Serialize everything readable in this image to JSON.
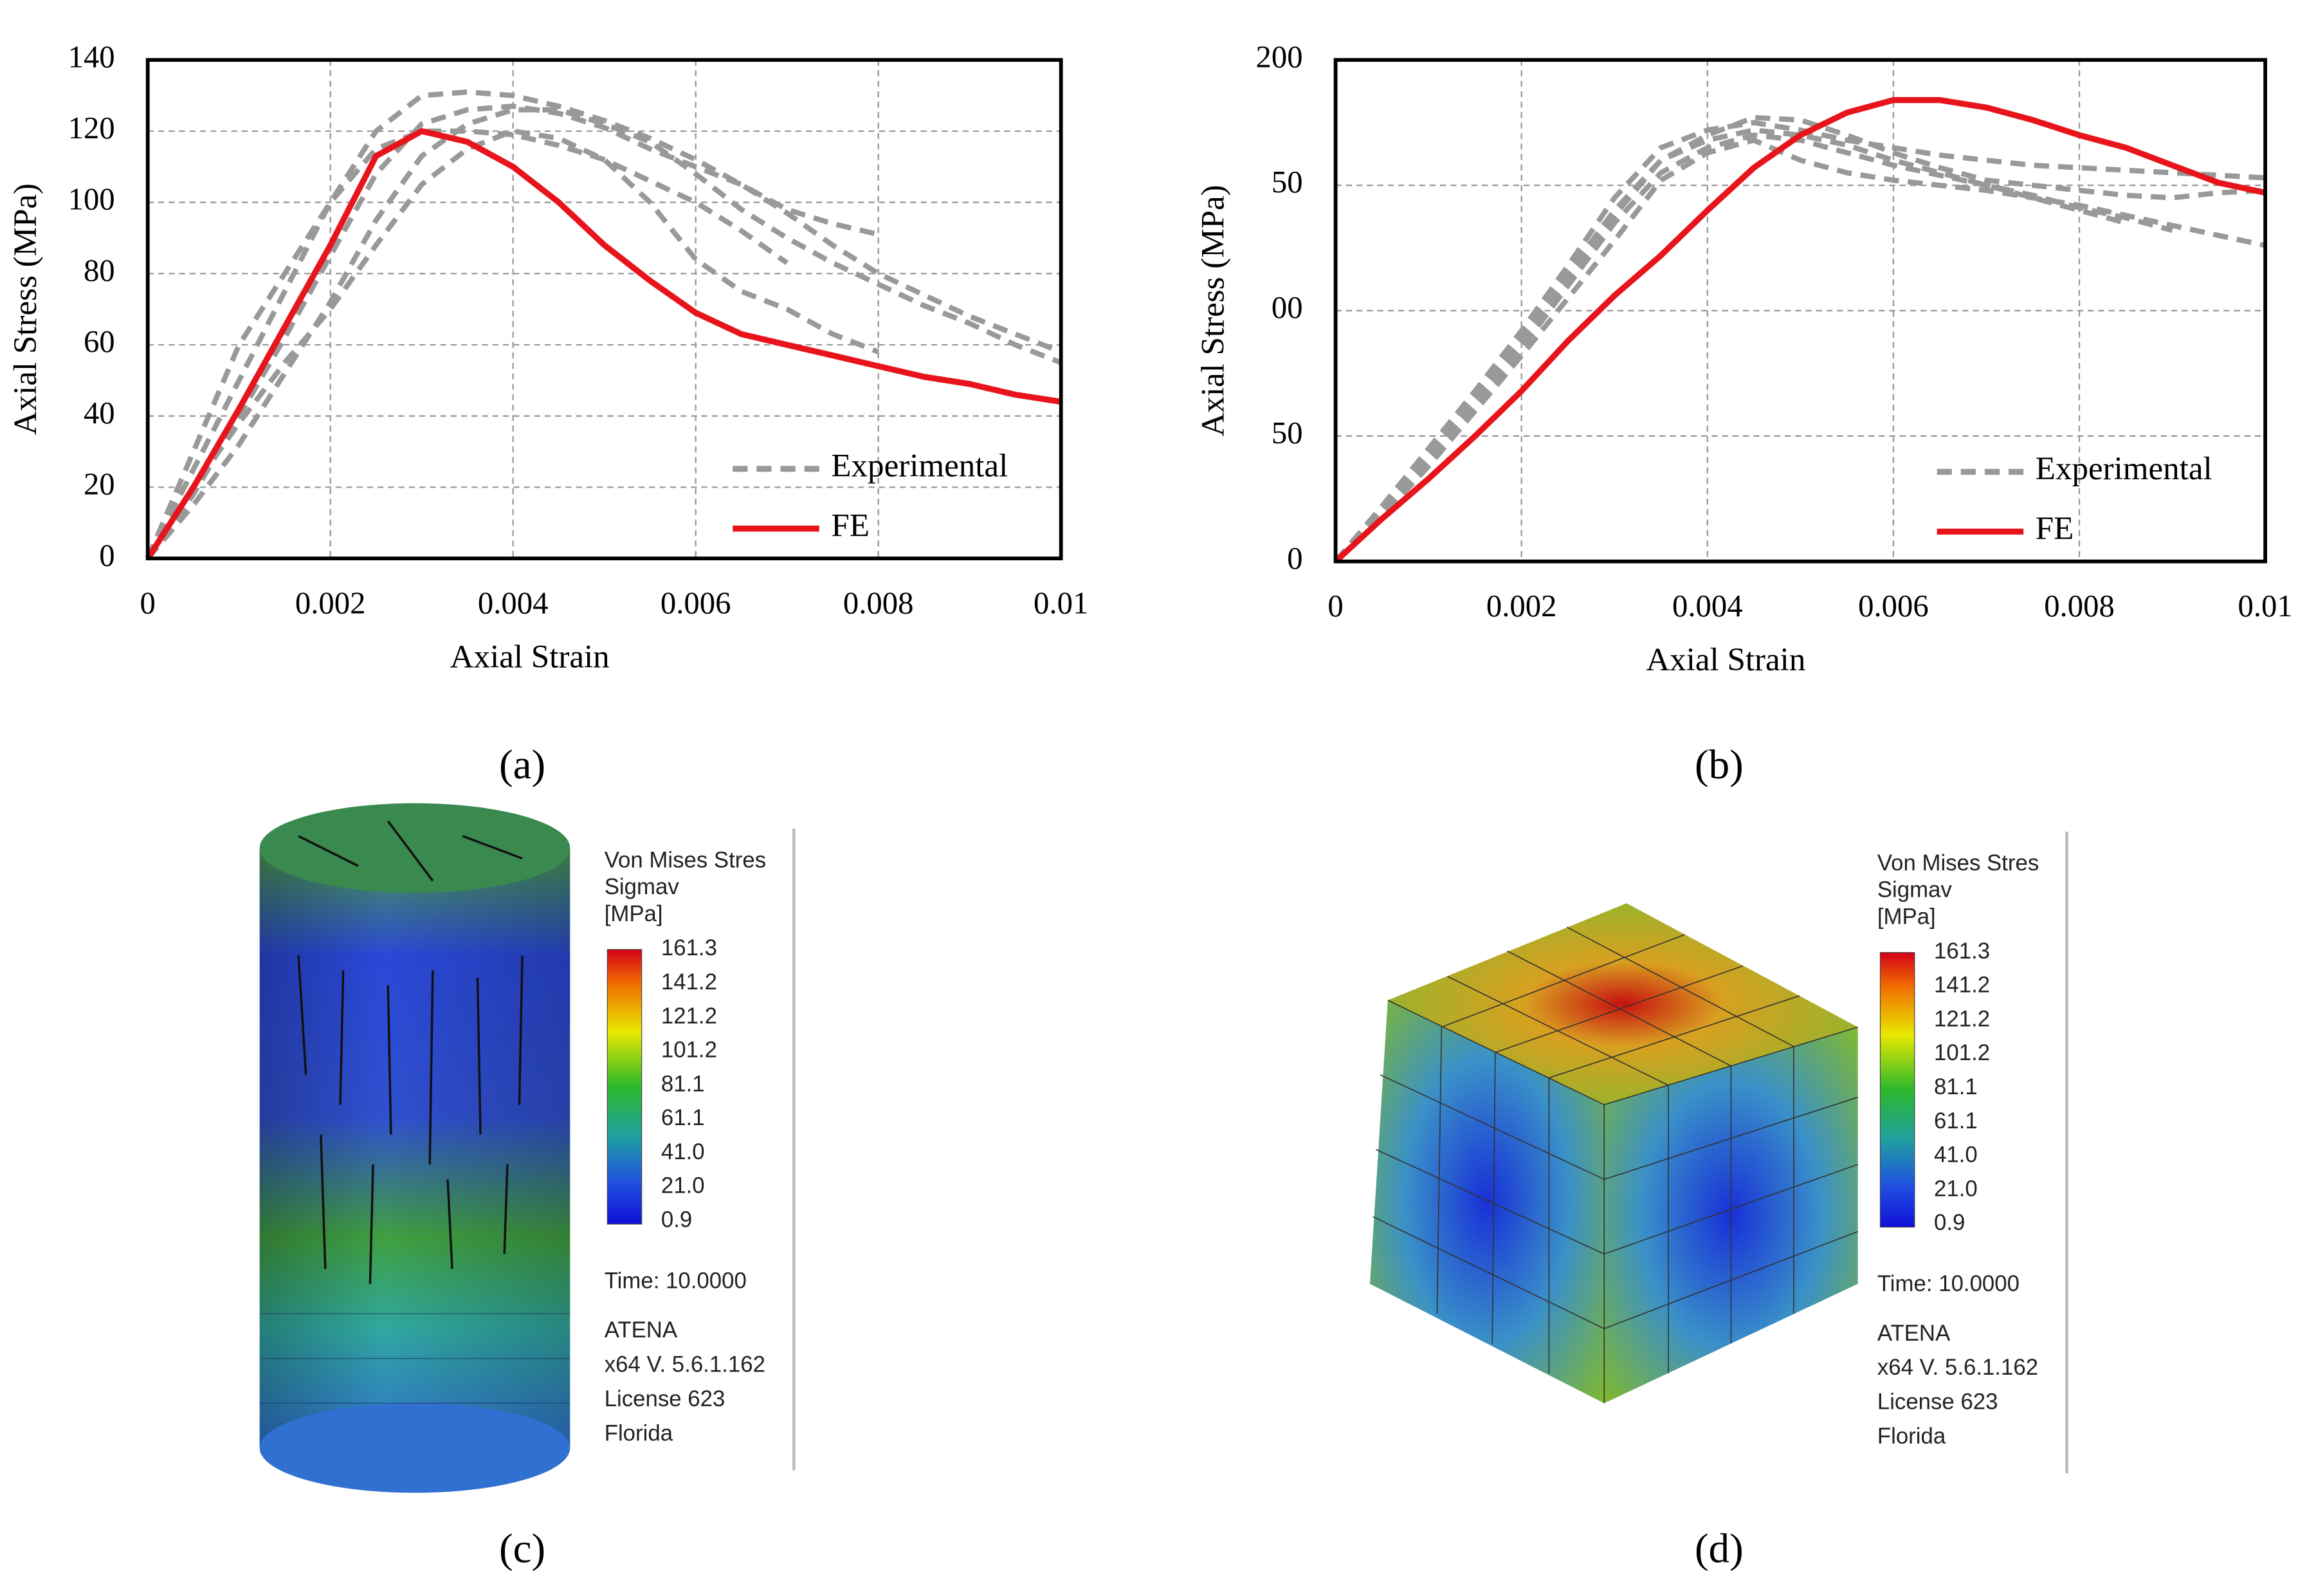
{
  "chart_data": [
    {
      "type": "line",
      "caption": "(a)",
      "xlabel": "Axial  Strain",
      "ylabel": "Axial  Stress (MPa)",
      "x": [
        0,
        0.0005,
        0.001,
        0.0015,
        0.002,
        0.0025,
        0.003,
        0.0035,
        0.004,
        0.0045,
        0.005,
        0.0055,
        0.006,
        0.0065,
        0.007,
        0.0075,
        0.008,
        0.0085,
        0.009,
        0.0095,
        0.01
      ],
      "xlim": [
        0,
        0.01
      ],
      "xticks": [
        0,
        0.002,
        0.004,
        0.006,
        0.008,
        0.01
      ],
      "ylim": [
        0,
        140
      ],
      "yticks": [
        0,
        20,
        40,
        60,
        80,
        100,
        120,
        140
      ],
      "grid": true,
      "legend": "lower right",
      "series": [
        {
          "name": "Experimental",
          "color": "#999999",
          "style": "dashed",
          "values": [
            0,
            25,
            50,
            75,
            100,
            120,
            130,
            131,
            130,
            127,
            123,
            118,
            112,
            105,
            97,
            88,
            80,
            74,
            68,
            63,
            58
          ]
        },
        {
          "name": "Experimental",
          "color": "#999999",
          "style": "dashed",
          "values": [
            0,
            18,
            40,
            62,
            85,
            108,
            122,
            126,
            127,
            125,
            121,
            115,
            110,
            105,
            98,
            94,
            91,
            null,
            null,
            null,
            null
          ]
        },
        {
          "name": "Experimental",
          "color": "#999999",
          "style": "dashed",
          "values": [
            0,
            15,
            32,
            52,
            72,
            95,
            113,
            122,
            126,
            126,
            122,
            117,
            108,
            98,
            90,
            83,
            77,
            71,
            66,
            60,
            55
          ]
        },
        {
          "name": "Experimental",
          "color": "#999999",
          "style": "dashed",
          "values": [
            0,
            30,
            60,
            80,
            100,
            115,
            120,
            120,
            119,
            116,
            112,
            106,
            100,
            92,
            83,
            null,
            null,
            null,
            null,
            null,
            null
          ]
        },
        {
          "name": "Experimental",
          "color": "#999999",
          "style": "dashed",
          "values": [
            0,
            20,
            38,
            55,
            70,
            88,
            105,
            115,
            120,
            118,
            112,
            100,
            84,
            75,
            70,
            63,
            58,
            null,
            null,
            null,
            null
          ]
        },
        {
          "name": "FE",
          "color": "#e8141b",
          "style": "solid",
          "values": [
            0,
            20,
            42,
            65,
            88,
            113,
            120,
            117,
            110,
            100,
            88,
            78,
            69,
            63,
            60,
            57,
            54,
            51,
            49,
            46,
            44
          ]
        }
      ]
    },
    {
      "type": "line",
      "caption": "(b)",
      "xlabel": "Axial  Strain",
      "ylabel": "Axial Stress (MPa)",
      "x": [
        0,
        0.0005,
        0.001,
        0.0015,
        0.002,
        0.0025,
        0.003,
        0.0035,
        0.004,
        0.0045,
        0.005,
        0.0055,
        0.006,
        0.0065,
        0.007,
        0.0075,
        0.008,
        0.0085,
        0.009,
        0.0095,
        0.01
      ],
      "xlim": [
        0,
        0.01
      ],
      "xticks": [
        0,
        0.002,
        0.004,
        0.006,
        0.008,
        0.01
      ],
      "ylim": [
        0,
        200
      ],
      "yticks": [
        0,
        {
          "value": 50,
          "label": "50"
        },
        {
          "value": 100,
          "label": "00"
        },
        {
          "value": 150,
          "label": "50"
        },
        200
      ],
      "grid": true,
      "legend": "lower right",
      "series": [
        {
          "name": "Experimental",
          "color": "#999999",
          "style": "dashed",
          "values": [
            0,
            22,
            45,
            68,
            92,
            118,
            145,
            165,
            172,
            175,
            172,
            168,
            165,
            162,
            160,
            158,
            157,
            156,
            155,
            154,
            153
          ]
        },
        {
          "name": "Experimental",
          "color": "#999999",
          "style": "dashed",
          "values": [
            0,
            20,
            42,
            65,
            88,
            112,
            138,
            160,
            170,
            177,
            176,
            170,
            163,
            157,
            152,
            150,
            148,
            146,
            145,
            147,
            148
          ]
        },
        {
          "name": "Experimental",
          "color": "#999999",
          "style": "dashed",
          "values": [
            0,
            18,
            38,
            60,
            82,
            105,
            128,
            152,
            163,
            168,
            160,
            155,
            152,
            150,
            148,
            145,
            142,
            138,
            134,
            130,
            126
          ]
        },
        {
          "name": "Experimental",
          "color": "#999999",
          "style": "dashed",
          "values": [
            0,
            21,
            44,
            66,
            90,
            115,
            140,
            160,
            168,
            172,
            170,
            166,
            160,
            155,
            150,
            145,
            140,
            135,
            null,
            null,
            null
          ]
        },
        {
          "name": "Experimental",
          "color": "#999999",
          "style": "dashed",
          "values": [
            0,
            19,
            40,
            62,
            85,
            110,
            135,
            155,
            165,
            170,
            168,
            163,
            158,
            154,
            150,
            146,
            141,
            137,
            132,
            null,
            null
          ]
        },
        {
          "name": "FE",
          "color": "#e8141b",
          "style": "solid",
          "values": [
            0,
            17,
            33,
            50,
            68,
            88,
            106,
            122,
            140,
            157,
            170,
            179,
            184,
            184,
            181,
            176,
            170,
            165,
            158,
            151,
            147
          ]
        }
      ]
    }
  ],
  "figures": [
    {
      "caption": "(c)",
      "legend_title": [
        "Von Mises Stres",
        "Sigmav",
        "[MPa]"
      ],
      "scale": [
        "161.3",
        "141.2",
        "121.2",
        "101.2",
        "81.1",
        "61.1",
        "41.0",
        "21.0",
        "0.9"
      ],
      "time": "Time:  10.0000",
      "info": [
        "ATENA",
        "x64 V. 5.6.1.162",
        "License 623",
        "Florida"
      ]
    },
    {
      "caption": "(d)",
      "legend_title": [
        "Von Mises Stres",
        "Sigmav",
        "[MPa]"
      ],
      "scale": [
        "161.3",
        "141.2",
        "121.2",
        "101.2",
        "81.1",
        "61.1",
        "41.0",
        "21.0",
        "0.9"
      ],
      "time": "Time:  10.0000",
      "info": [
        "ATENA",
        "x64 V. 5.6.1.162",
        "License 623",
        "Florida"
      ]
    }
  ]
}
